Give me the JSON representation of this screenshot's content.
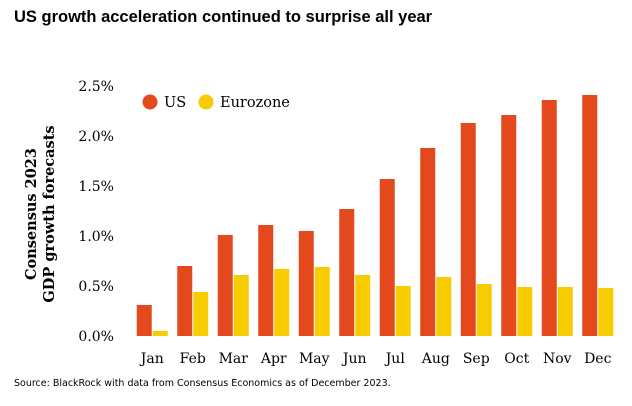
{
  "header": {
    "title": "US growth acceleration continued to surprise all year"
  },
  "footer": {
    "source": "Source: BlackRock with data from Consensus Economics as of December 2023."
  },
  "chart_data": {
    "type": "bar",
    "categories": [
      "Jan",
      "Feb",
      "Mar",
      "Apr",
      "May",
      "Jun",
      "Jul",
      "Aug",
      "Sep",
      "Oct",
      "Nov",
      "Dec"
    ],
    "series": [
      {
        "name": "US",
        "color": "#e3491c",
        "values": [
          0.31,
          0.7,
          1.01,
          1.11,
          1.05,
          1.27,
          1.57,
          1.88,
          2.13,
          2.21,
          2.36,
          2.41
        ]
      },
      {
        "name": "Eurozone",
        "color": "#f7cc00",
        "values": [
          0.05,
          0.44,
          0.61,
          0.67,
          0.69,
          0.61,
          0.5,
          0.59,
          0.52,
          0.49,
          0.49,
          0.48
        ]
      }
    ],
    "ylabel_lines": [
      "Consensus 2023",
      "GDP growth forecasts"
    ],
    "ylim": [
      0,
      2.5
    ],
    "yticks": [
      "0.0%",
      "0.5%",
      "1.0%",
      "1.5%",
      "2.0%",
      "2.5%"
    ],
    "ytick_values": [
      0,
      0.5,
      1.0,
      1.5,
      2.0,
      2.5
    ],
    "legend_position": "top-left",
    "grid": false
  }
}
